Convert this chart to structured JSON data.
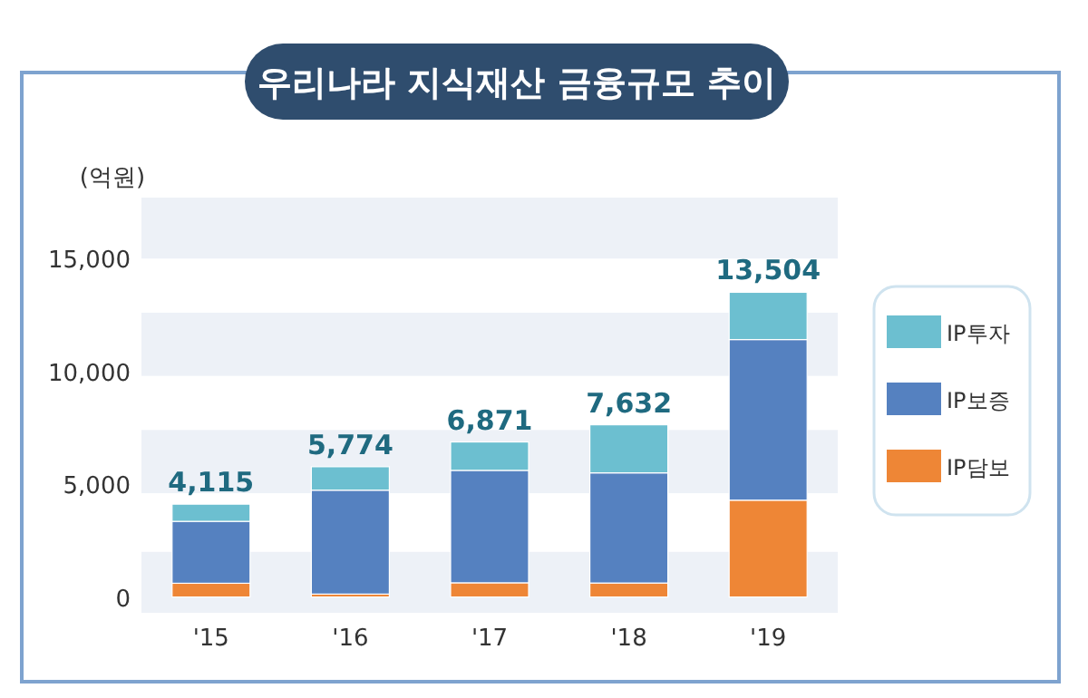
{
  "chart_data": {
    "type": "bar",
    "stacked": true,
    "title": "우리나라 지식재산 금융규모 추이",
    "ylabel": "(억원)",
    "categories": [
      "'15",
      "'16",
      "'17",
      "'18",
      "'19"
    ],
    "series": [
      {
        "name": "IP담보",
        "color": "#ee8636",
        "values": [
          609,
          130,
          629,
          620,
          4291
        ]
      },
      {
        "name": "IP보증",
        "color": "#5581c0",
        "values": [
          2744,
          4604,
          4983,
          4881,
          7118
        ]
      },
      {
        "name": "IP투자",
        "color": "#6cbfd0",
        "values": [
          762,
          1040,
          1259,
          2131,
          2095
        ]
      }
    ],
    "totals": [
      "4,115",
      "5,774",
      "6,871",
      "7,632",
      "13,504"
    ],
    "ylim": [
      -700,
      17700
    ],
    "yticks": [
      {
        "value": 0,
        "label": "0"
      },
      {
        "value": 5000,
        "label": "5,000"
      },
      {
        "value": 10000,
        "label": "10,000"
      },
      {
        "value": 15000,
        "label": "15,000"
      }
    ],
    "bands": [
      {
        "axis": "y",
        "from": -700,
        "to": 2000,
        "color": "#edf1f7"
      },
      {
        "axis": "y",
        "from": 4600,
        "to": 7400,
        "color": "#edf1f7"
      },
      {
        "axis": "y",
        "from": 9800,
        "to": 12600,
        "color": "#edf1f7"
      },
      {
        "axis": "y",
        "from": 15000,
        "to": 17700,
        "color": "#edf1f7"
      }
    ],
    "grid": false,
    "legend": "right"
  }
}
